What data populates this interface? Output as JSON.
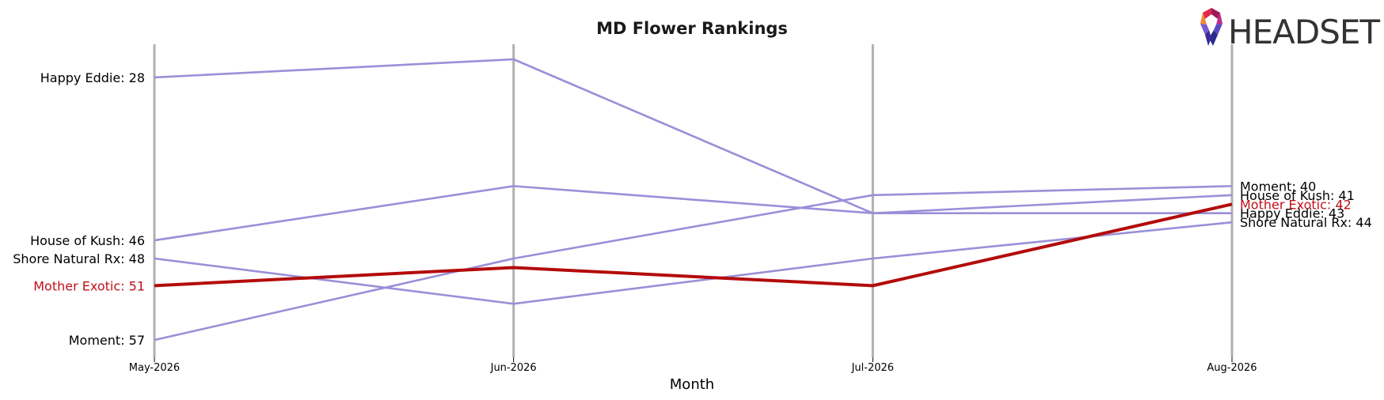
{
  "chart_data": {
    "type": "line",
    "title": "MD Flower Rankings",
    "xlabel": "Month",
    "ylabel": "",
    "categories": [
      "May-2026",
      "Jun-2026",
      "Jul-2026",
      "Aug-2026"
    ],
    "ylim": [
      59,
      26
    ],
    "grid": "vertical lines at each month",
    "series": [
      {
        "name": "Happy Eddie",
        "values": [
          28,
          26,
          43,
          43
        ],
        "color": "#9b8fd8",
        "highlight": false,
        "start_label": "Happy Eddie: 28",
        "end_label": "Happy Eddie: 43"
      },
      {
        "name": "House of Kush",
        "values": [
          46,
          40,
          43,
          41
        ],
        "color": "#9b8fd8",
        "highlight": false,
        "start_label": "House of Kush: 46",
        "end_label": "House of Kush: 41"
      },
      {
        "name": "Shore Natural Rx",
        "values": [
          48,
          53,
          48,
          44
        ],
        "color": "#9b8fd8",
        "highlight": false,
        "start_label": "Shore Natural Rx: 48",
        "end_label": "Shore Natural Rx: 44"
      },
      {
        "name": "Mother Exotic",
        "values": [
          51,
          49,
          51,
          42
        ],
        "color": "#b30b0b",
        "highlight": true,
        "start_label": "Mother Exotic: 51",
        "end_label": "Mother Exotic: 42"
      },
      {
        "name": "Moment",
        "values": [
          57,
          48,
          41,
          40
        ],
        "color": "#9b8fd8",
        "highlight": false,
        "start_label": "Moment: 57",
        "end_label": "Moment: 40"
      }
    ]
  },
  "logo": {
    "text": "HEADSET",
    "colors": [
      "#f08a32",
      "#e02a4a",
      "#a0185a",
      "#c02a8a",
      "#2a2a8a",
      "#5a4ac0"
    ]
  }
}
